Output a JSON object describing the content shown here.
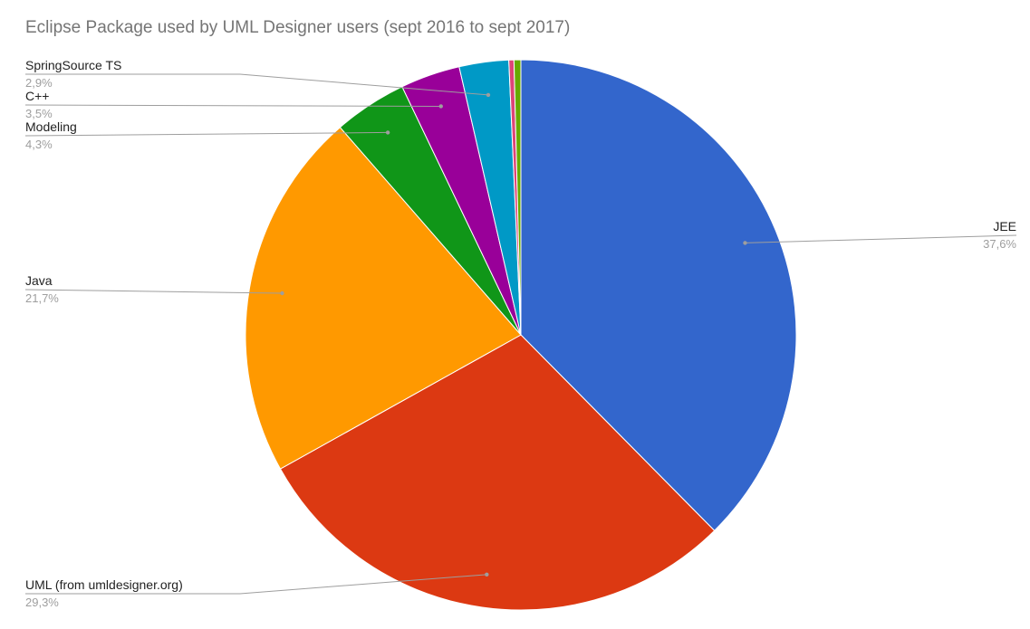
{
  "chart_data": {
    "type": "pie",
    "title": "Eclipse Package used by UML Designer users (sept 2016 to sept 2017)",
    "slices": [
      {
        "label": "JEE",
        "value": 37.6,
        "display": "37,6%",
        "color": "#3366cc"
      },
      {
        "label": "UML (from umldesigner.org)",
        "value": 29.3,
        "display": "29,3%",
        "color": "#dc3912"
      },
      {
        "label": "Java",
        "value": 21.7,
        "display": "21,7%",
        "color": "#ff9900"
      },
      {
        "label": "Modeling",
        "value": 4.3,
        "display": "4,3%",
        "color": "#109618"
      },
      {
        "label": "C++",
        "value": 3.5,
        "display": "3,5%",
        "color": "#990099"
      },
      {
        "label": "SpringSource TS",
        "value": 2.9,
        "display": "2,9%",
        "color": "#0099c6"
      },
      {
        "label": "",
        "value": 0.3,
        "display": "",
        "color": "#dd4477"
      },
      {
        "label": "",
        "value": 0.4,
        "display": "",
        "color": "#66aa00"
      }
    ],
    "start_angle": "12 o'clock",
    "direction": "clockwise",
    "label_style": "leader lines with name and percentage"
  }
}
